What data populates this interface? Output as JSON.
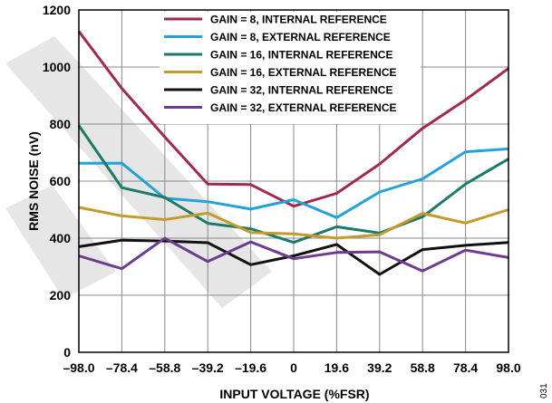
{
  "chart_data": {
    "type": "line",
    "xlabel": "INPUT VOLTAGE (%FSR)",
    "ylabel": "RMS NOISE (nV)",
    "x": [
      -98.0,
      -78.4,
      -58.8,
      -39.2,
      -19.6,
      0,
      19.6,
      39.2,
      58.8,
      78.4,
      98.0
    ],
    "x_tick_labels": [
      "–98.0",
      "–78.4",
      "–58.8",
      "–39.2",
      "–19.6",
      "0",
      "19.6",
      "39.2",
      "58.8",
      "78.4",
      "98.0"
    ],
    "y_ticks": [
      0,
      200,
      400,
      600,
      800,
      1000,
      1200
    ],
    "y_tick_labels": [
      "0",
      "200",
      "400",
      "600",
      "800",
      "1000",
      "1200"
    ],
    "xlim": [
      -98.0,
      98.0
    ],
    "ylim": [
      0,
      1200
    ],
    "grid": true,
    "legend_position": "top-center",
    "figure_id": "031",
    "series": [
      {
        "name": "GAIN = 8, INTERNAL REFERENCE",
        "color": "#a3284f",
        "values": [
          1125,
          925,
          755,
          590,
          588,
          512,
          557,
          660,
          785,
          885,
          995
        ]
      },
      {
        "name": "GAIN = 8, EXTERNAL REFERENCE",
        "color": "#1fa3d8",
        "values": [
          663,
          663,
          540,
          528,
          502,
          535,
          472,
          562,
          608,
          703,
          713
        ]
      },
      {
        "name": "GAIN = 16, INTERNAL REFERENCE",
        "color": "#1b7a6a",
        "values": [
          795,
          577,
          543,
          452,
          433,
          385,
          440,
          418,
          475,
          590,
          678
        ]
      },
      {
        "name": "GAIN = 16, EXTERNAL REFERENCE",
        "color": "#c49a2c",
        "values": [
          508,
          478,
          465,
          488,
          420,
          415,
          400,
          412,
          487,
          453,
          500
        ]
      },
      {
        "name": "GAIN = 32, INTERNAL REFERENCE",
        "color": "#111111",
        "values": [
          370,
          393,
          390,
          384,
          307,
          338,
          378,
          273,
          360,
          375,
          385
        ]
      },
      {
        "name": "GAIN = 32, EXTERNAL REFERENCE",
        "color": "#6b3d8f",
        "values": [
          338,
          293,
          400,
          318,
          387,
          328,
          350,
          352,
          285,
          358,
          332
        ]
      }
    ]
  }
}
